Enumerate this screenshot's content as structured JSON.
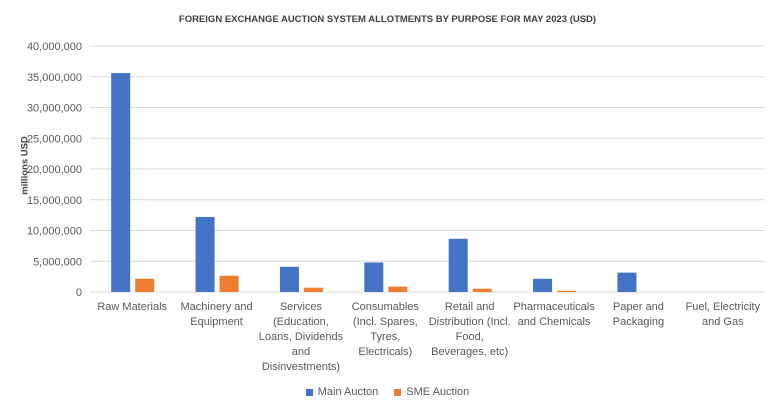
{
  "chart_data": {
    "type": "bar",
    "title": "FOREIGN EXCHANGE AUCTION SYSTEM ALLOTMENTS BY PURPOSE FOR MAY 2023 (USD)",
    "xlabel": "",
    "ylabel": "millions USD",
    "ylim": [
      0,
      40000000
    ],
    "yticks": [
      "0",
      "5,000,000",
      "10,000,000",
      "15,000,000",
      "20,000,000",
      "25,000,000",
      "30,000,000",
      "35,000,000",
      "40,000,000"
    ],
    "grid": true,
    "legend_position": "bottom",
    "categories": [
      "Raw Materials",
      "Machinery and Equipment",
      "Services (Education, Loans, Dividends and Disinvestments)",
      "Consumables (Incl. Spares, Tyres, Electricals)",
      "Retail and Distribution (Incl. Food, Beverages, etc)",
      "Pharmaceuticals and Chemicals",
      "Paper and Packaging",
      "Fuel, Electricity and Gas"
    ],
    "series": [
      {
        "name": "Main Aucton",
        "color": "#4472C4",
        "values": [
          35600000,
          12200000,
          4100000,
          4800000,
          8650000,
          2150000,
          3150000,
          0
        ]
      },
      {
        "name": "SME Auction",
        "color": "#ED7D31",
        "values": [
          2150000,
          2650000,
          700000,
          870000,
          540000,
          200000,
          0,
          0
        ]
      }
    ]
  }
}
